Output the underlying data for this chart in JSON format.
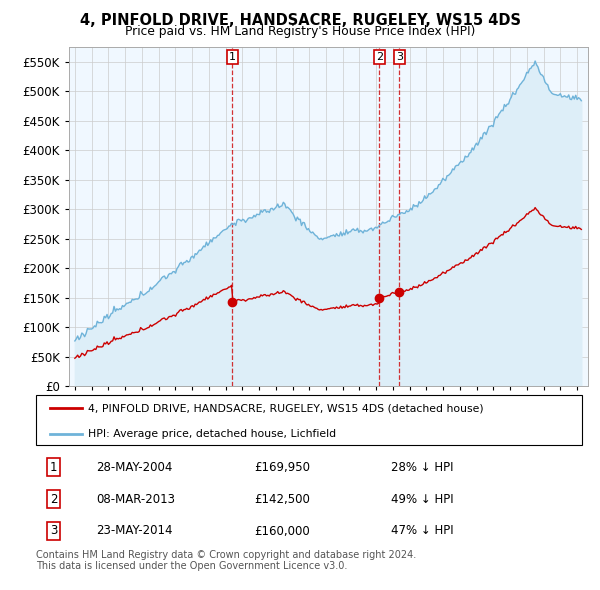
{
  "title": "4, PINFOLD DRIVE, HANDSACRE, RUGELEY, WS15 4DS",
  "subtitle": "Price paid vs. HM Land Registry's House Price Index (HPI)",
  "hpi_color": "#6fb3d9",
  "hpi_fill_color": "#ddeef8",
  "price_color": "#cc0000",
  "legend_line1": "4, PINFOLD DRIVE, HANDSACRE, RUGELEY, WS15 4DS (detached house)",
  "legend_line2": "HPI: Average price, detached house, Lichfield",
  "transaction1_date": "28-MAY-2004",
  "transaction1_price": 169950,
  "transaction1_pct": "28% ↓ HPI",
  "transaction1_year": 2004.41,
  "transaction2_date": "08-MAR-2013",
  "transaction2_price": 142500,
  "transaction2_pct": "49% ↓ HPI",
  "transaction2_year": 2013.18,
  "transaction3_date": "23-MAY-2014",
  "transaction3_price": 160000,
  "transaction3_pct": "47% ↓ HPI",
  "transaction3_year": 2014.39,
  "footer_line1": "Contains HM Land Registry data © Crown copyright and database right 2024.",
  "footer_line2": "This data is licensed under the Open Government Licence v3.0.",
  "ylim_max": 575000,
  "ylim_min": 0,
  "background_color": "#f0f8ff"
}
